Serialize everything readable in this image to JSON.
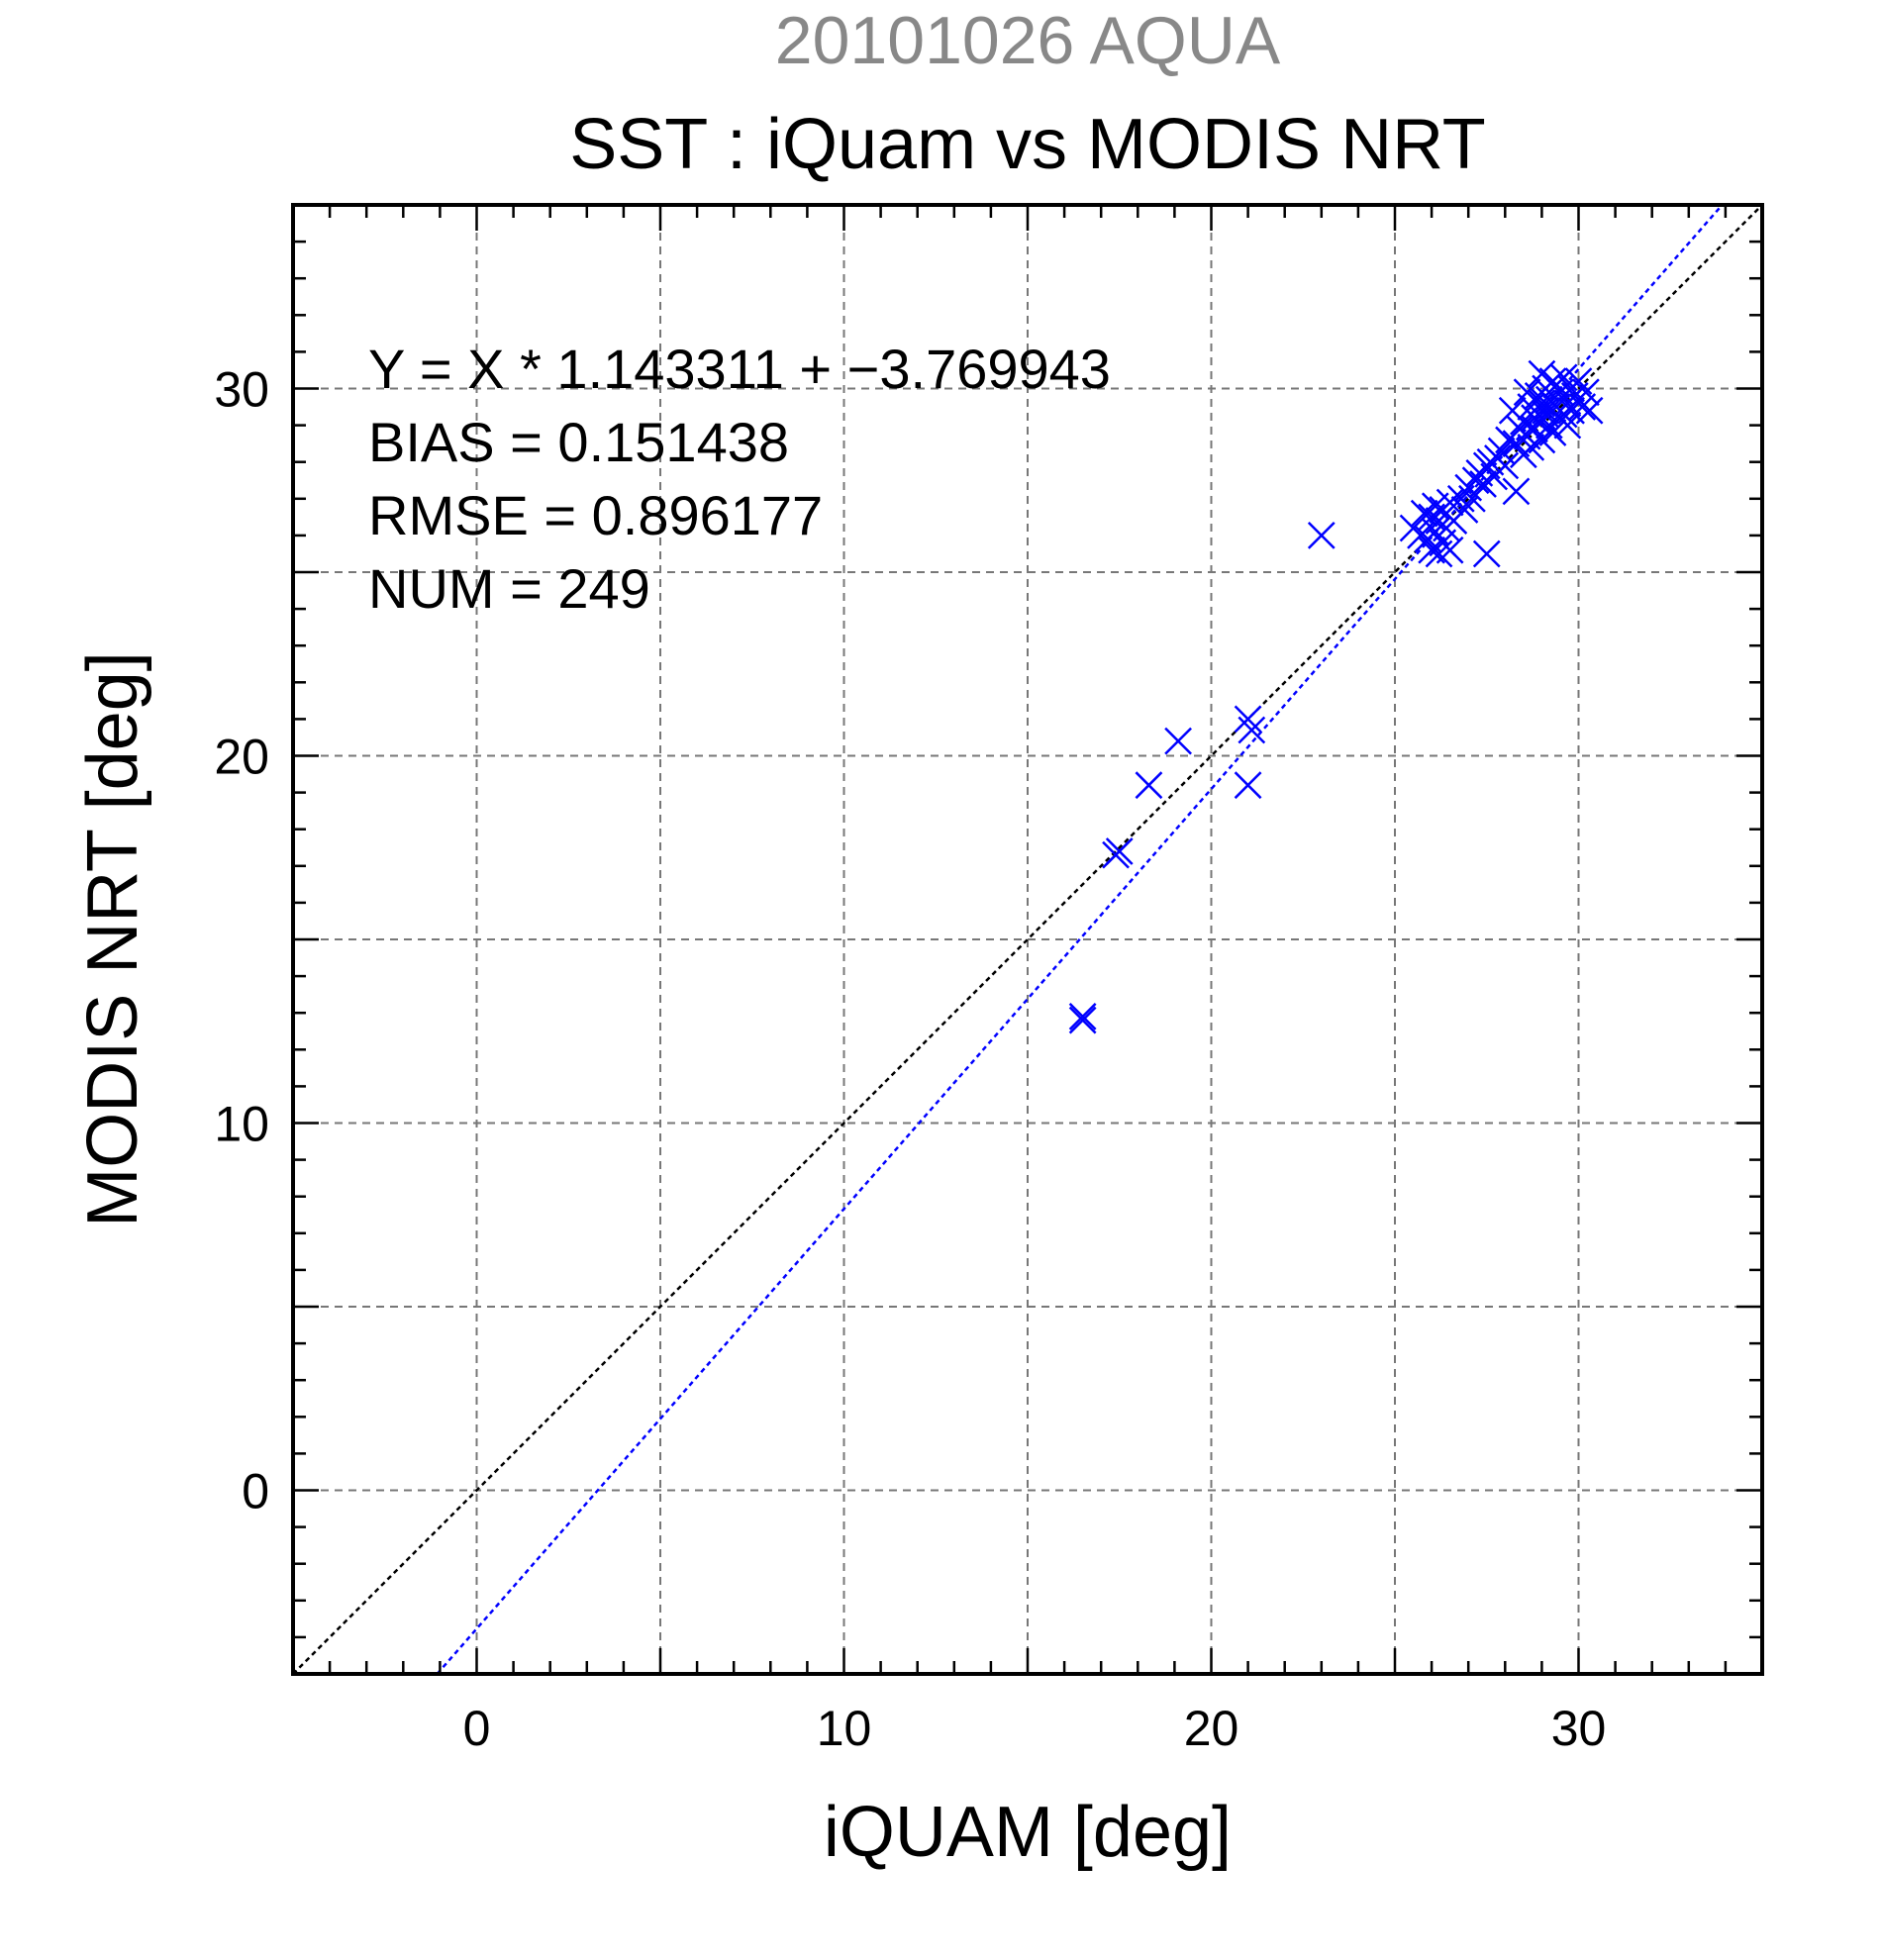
{
  "chart_data": {
    "type": "scatter",
    "title_top": "20101026 AQUA",
    "title": "SST : iQuam vs MODIS NRT",
    "xlabel": "iQUAM [deg]",
    "ylabel": "MODIS NRT [deg]",
    "xlim": [
      -5,
      35
    ],
    "ylim": [
      -5,
      35
    ],
    "major_ticks": [
      0,
      10,
      20,
      30
    ],
    "tick_labels": [
      "0",
      "10",
      "20",
      "30"
    ],
    "grid_step": 5,
    "minor_step": 1,
    "grid": true,
    "annotations": [
      "Y = X * 1.143311 + −3.769943",
      "BIAS = 0.151438",
      "RMSE = 0.896177",
      "NUM = 249"
    ],
    "lines": [
      {
        "kind": "one-to-one",
        "slope": 1,
        "intercept": 0,
        "color": "#000000"
      },
      {
        "kind": "regression",
        "slope": 1.143311,
        "intercept": -3.769943,
        "color": "#0000ff"
      }
    ],
    "marker_color": "#0000ff",
    "marker": "x",
    "points": [
      [
        16.5,
        12.8
      ],
      [
        16.5,
        12.9
      ],
      [
        17.4,
        17.3
      ],
      [
        17.5,
        17.4
      ],
      [
        18.3,
        19.2
      ],
      [
        19.1,
        20.4
      ],
      [
        21.0,
        21.0
      ],
      [
        21.1,
        20.7
      ],
      [
        21.0,
        19.2
      ],
      [
        23.0,
        26.0
      ],
      [
        25.5,
        26.2
      ],
      [
        25.7,
        26.0
      ],
      [
        25.8,
        26.6
      ],
      [
        25.9,
        25.9
      ],
      [
        26.0,
        26.5
      ],
      [
        26.0,
        25.6
      ],
      [
        26.1,
        26.8
      ],
      [
        26.1,
        26.1
      ],
      [
        26.2,
        25.5
      ],
      [
        26.2,
        26.4
      ],
      [
        26.3,
        25.8
      ],
      [
        26.3,
        26.7
      ],
      [
        26.4,
        26.2
      ],
      [
        26.5,
        25.6
      ],
      [
        26.5,
        26.9
      ],
      [
        26.6,
        26.4
      ],
      [
        26.8,
        27.0
      ],
      [
        26.9,
        26.7
      ],
      [
        27.0,
        27.3
      ],
      [
        27.1,
        27.0
      ],
      [
        27.2,
        27.5
      ],
      [
        27.3,
        27.7
      ],
      [
        27.4,
        27.4
      ],
      [
        27.5,
        27.9
      ],
      [
        27.5,
        25.5
      ],
      [
        27.6,
        28.0
      ],
      [
        27.7,
        27.6
      ],
      [
        27.8,
        28.1
      ],
      [
        27.9,
        28.3
      ],
      [
        28.0,
        27.9
      ],
      [
        28.1,
        28.6
      ],
      [
        28.2,
        29.4
      ],
      [
        28.3,
        28.5
      ],
      [
        28.3,
        27.2
      ],
      [
        28.4,
        28.9
      ],
      [
        28.5,
        29.1
      ],
      [
        28.5,
        28.2
      ],
      [
        28.6,
        28.7
      ],
      [
        28.7,
        29.5
      ],
      [
        28.7,
        28.4
      ],
      [
        28.8,
        29.2
      ],
      [
        28.8,
        28.9
      ],
      [
        28.9,
        29.8
      ],
      [
        28.9,
        29.1
      ],
      [
        29.0,
        30.4
      ],
      [
        29.0,
        29.6
      ],
      [
        29.0,
        28.6
      ],
      [
        29.1,
        29.3
      ],
      [
        29.1,
        30.0
      ],
      [
        29.2,
        29.0
      ],
      [
        29.2,
        29.7
      ],
      [
        29.3,
        30.2
      ],
      [
        29.3,
        28.8
      ],
      [
        29.4,
        29.5
      ],
      [
        29.4,
        30.1
      ],
      [
        29.5,
        29.2
      ],
      [
        29.5,
        29.9
      ],
      [
        29.6,
        30.3
      ],
      [
        29.7,
        29.6
      ],
      [
        29.7,
        29.0
      ],
      [
        29.8,
        30.0
      ],
      [
        29.8,
        29.4
      ],
      [
        29.9,
        29.8
      ],
      [
        30.0,
        30.2
      ],
      [
        30.1,
        29.5
      ],
      [
        30.2,
        29.9
      ],
      [
        30.3,
        29.4
      ],
      [
        29.1,
        29.4
      ],
      [
        28.6,
        29.9
      ],
      [
        29.6,
        29.3
      ]
    ]
  }
}
